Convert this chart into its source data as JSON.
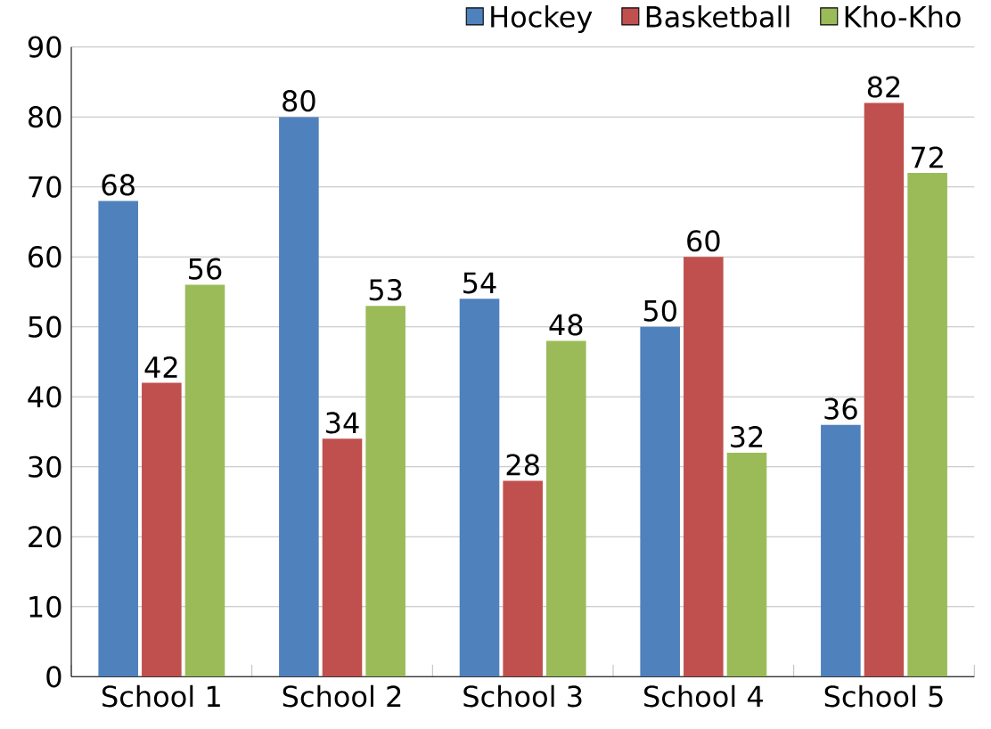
{
  "chart_data": {
    "type": "bar",
    "categories": [
      "School 1",
      "School 2",
      "School 3",
      "School 4",
      "School 5"
    ],
    "series": [
      {
        "name": "Hockey",
        "color": "#4f81bd",
        "values": [
          68,
          80,
          54,
          50,
          36
        ]
      },
      {
        "name": "Basketball",
        "color": "#c0504d",
        "values": [
          42,
          34,
          28,
          60,
          82
        ]
      },
      {
        "name": "Kho-Kho",
        "color": "#9bbb59",
        "values": [
          56,
          53,
          48,
          32,
          72
        ]
      }
    ],
    "ylim": [
      0,
      90
    ],
    "yticks": [
      0,
      10,
      20,
      30,
      40,
      50,
      60,
      70,
      80,
      90
    ],
    "grid": "y",
    "legend": "top right",
    "data_labels": true
  }
}
